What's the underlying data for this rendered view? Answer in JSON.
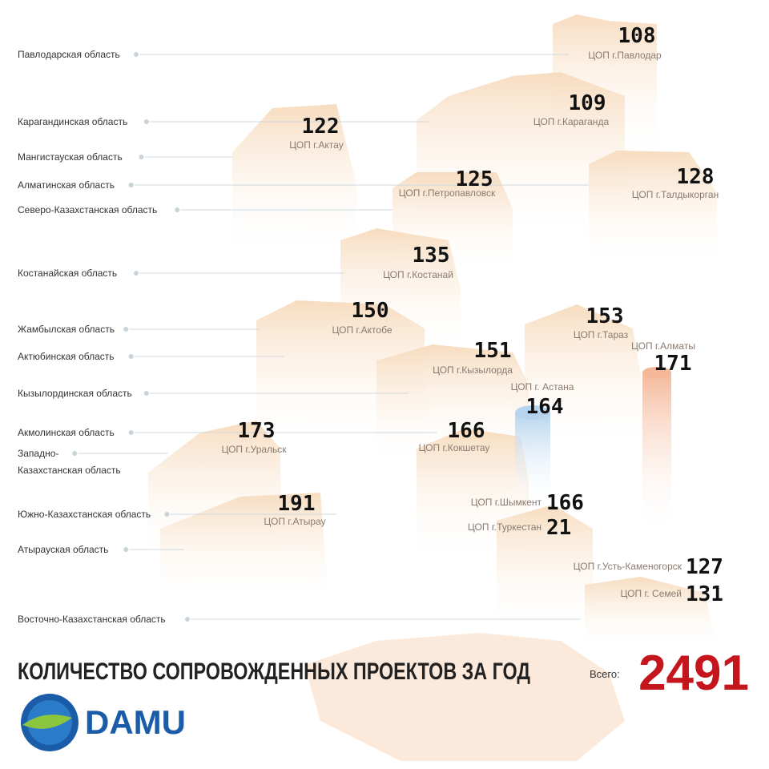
{
  "regions": [
    "Павлодарская область",
    "Карагандинская область",
    "Мангистауская область",
    "Алматинская область",
    "Северо-Казахстанская область",
    "Костанайская область",
    "Жамбылская область",
    "Актюбинская область",
    "Кызылординская область",
    "Акмолинская область",
    "Западно-\nКазахстанская область",
    "Южно-Казахстанская область",
    "Атырауская область",
    "Восточно-Казахстанская область"
  ],
  "centers": [
    {
      "label": "ЦОП г.Павлодар",
      "value": 108
    },
    {
      "label": "ЦОП г.Караганда",
      "value": 109
    },
    {
      "label": "ЦОП г.Актау",
      "value": 122
    },
    {
      "label": "ЦОП г.Петропавловск",
      "value": 125
    },
    {
      "label": "ЦОП г.Талдыкорган",
      "value": 128
    },
    {
      "label": "ЦОП г.Костанай",
      "value": 135
    },
    {
      "label": "ЦОП г.Актобе",
      "value": 150
    },
    {
      "label": "ЦОП г.Тараз",
      "value": 153
    },
    {
      "label": "ЦОП г.Алматы",
      "value": 171
    },
    {
      "label": "ЦОП г.Кызылорда",
      "value": 151
    },
    {
      "label": "ЦОП г. Астана",
      "value": 164
    },
    {
      "label": "ЦОП г.Уральск",
      "value": 173
    },
    {
      "label": "ЦОП г.Кокшетау",
      "value": 166
    },
    {
      "label": "ЦОП г.Атырау",
      "value": 191
    },
    {
      "label": "ЦОП г.Шымкент",
      "value": 166
    },
    {
      "label": "ЦОП г.Туркестан",
      "value": 21
    },
    {
      "label": "ЦОП г.Усть-Каменогорск",
      "value": 127
    },
    {
      "label": "ЦОП г. Семей",
      "value": 131
    }
  ],
  "title": "КОЛИЧЕСТВО СОПРОВОЖДЕННЫХ ПРОЕКТОВ ЗА ГОД",
  "total_label": "Всего:",
  "total": 2491,
  "logo": "DAMU"
}
